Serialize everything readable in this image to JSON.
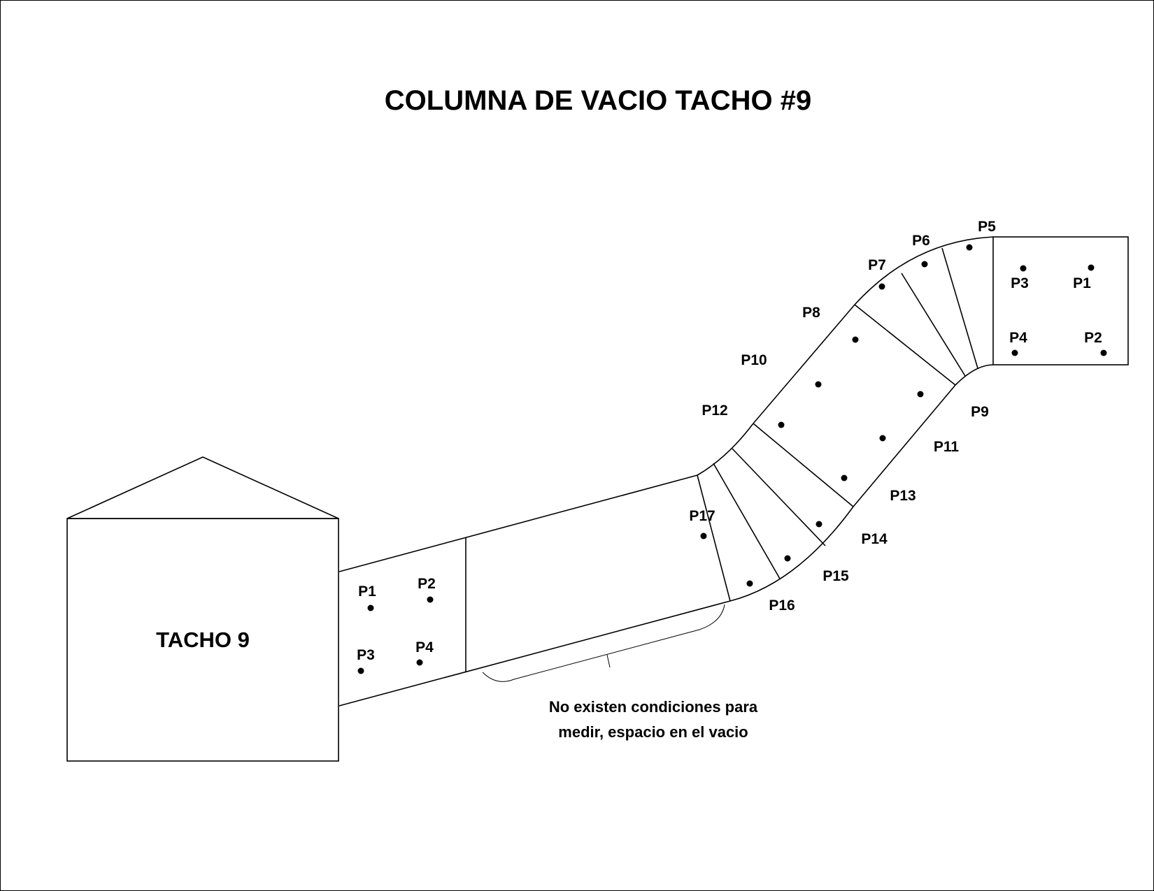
{
  "title": "COLUMNA DE VACIO TACHO #9",
  "tank": {
    "label": "TACHO 9"
  },
  "note": {
    "line1": "No existen condiciones para",
    "line2": "medir, espacio en el vacio"
  },
  "left_points": [
    "P1",
    "P2",
    "P3",
    "P4"
  ],
  "right_points": [
    "P1",
    "P2",
    "P3",
    "P4"
  ],
  "bend_points": [
    "P5",
    "P6",
    "P7",
    "P8",
    "P9",
    "P10",
    "P11",
    "P12",
    "P13",
    "P14",
    "P15",
    "P16",
    "P17"
  ],
  "colors": {
    "line": "#000000",
    "background": "#ffffff"
  }
}
